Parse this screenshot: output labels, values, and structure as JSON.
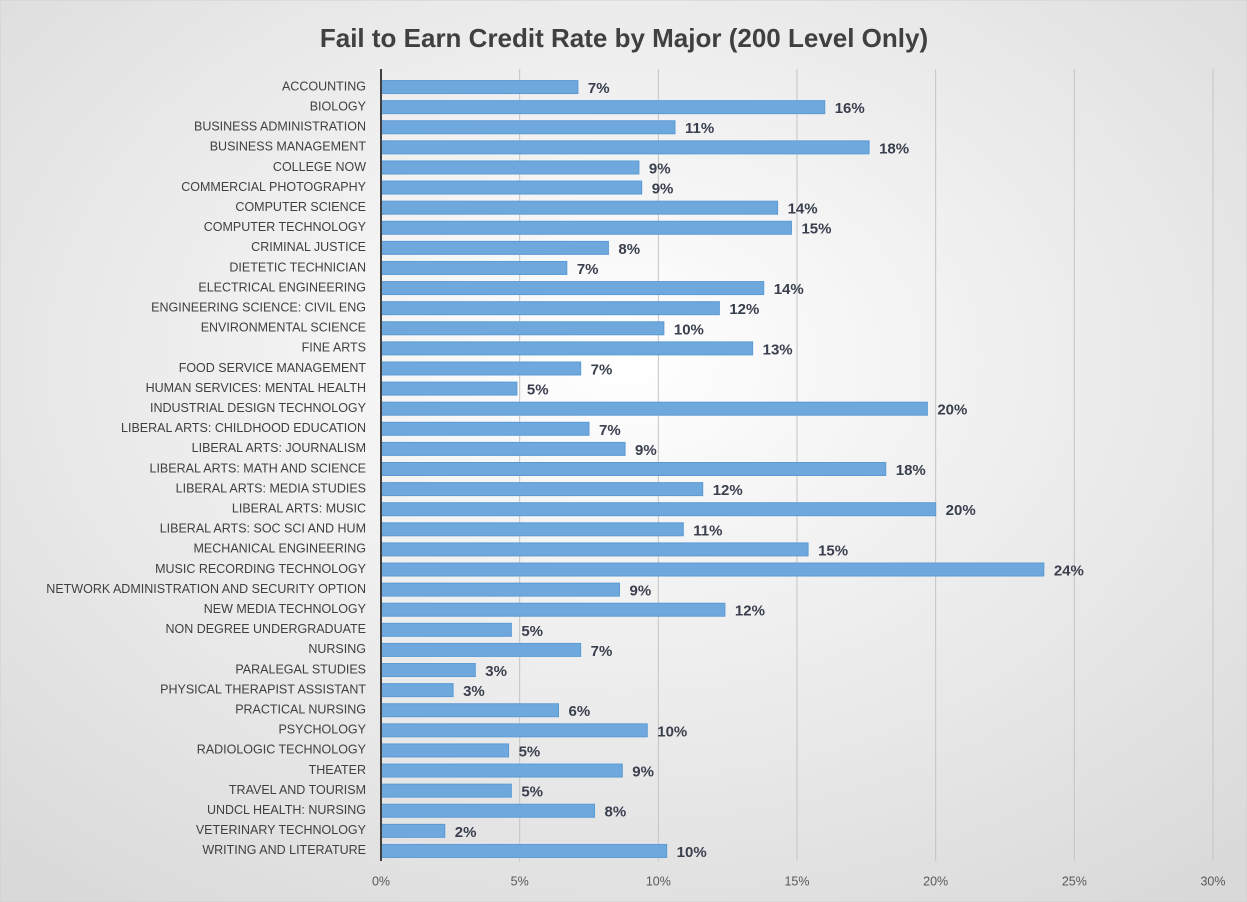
{
  "chart_data": {
    "type": "barh",
    "title": "Fail to Earn Credit Rate by Major (200 Level Only)",
    "categories": [
      "ACCOUNTING",
      "BIOLOGY",
      "BUSINESS ADMINISTRATION",
      "BUSINESS MANAGEMENT",
      "COLLEGE NOW",
      "COMMERCIAL PHOTOGRAPHY",
      "COMPUTER SCIENCE",
      "COMPUTER TECHNOLOGY",
      "CRIMINAL JUSTICE",
      "DIETETIC TECHNICIAN",
      "ELECTRICAL ENGINEERING",
      "ENGINEERING SCIENCE: CIVIL ENG",
      "ENVIRONMENTAL SCIENCE",
      "FINE ARTS",
      "FOOD SERVICE MANAGEMENT",
      "HUMAN SERVICES: MENTAL HEALTH",
      "INDUSTRIAL DESIGN TECHNOLOGY",
      "LIBERAL ARTS: CHILDHOOD EDUCATION",
      "LIBERAL ARTS: JOURNALISM",
      "LIBERAL ARTS: MATH AND SCIENCE",
      "LIBERAL ARTS: MEDIA STUDIES",
      "LIBERAL ARTS: MUSIC",
      "LIBERAL ARTS: SOC SCI AND HUM",
      "MECHANICAL ENGINEERING",
      "MUSIC RECORDING TECHNOLOGY",
      "NETWORK ADMINISTRATION AND SECURITY OPTION",
      "NEW MEDIA TECHNOLOGY",
      "NON DEGREE UNDERGRADUATE",
      "NURSING",
      "PARALEGAL STUDIES",
      "PHYSICAL THERAPIST ASSISTANT",
      "PRACTICAL NURSING",
      "PSYCHOLOGY",
      "RADIOLOGIC TECHNOLOGY",
      "THEATER",
      "TRAVEL AND TOURISM",
      "UNDCL HEALTH: NURSING",
      "VETERINARY TECHNOLOGY",
      "WRITING AND LITERATURE"
    ],
    "values": [
      7.1,
      16.0,
      10.6,
      17.6,
      9.3,
      9.4,
      14.3,
      14.8,
      8.2,
      6.7,
      13.8,
      12.2,
      10.2,
      13.4,
      7.2,
      4.9,
      19.7,
      7.5,
      8.8,
      18.2,
      11.6,
      20.0,
      10.9,
      15.4,
      23.9,
      8.6,
      12.4,
      4.7,
      7.2,
      3.4,
      2.6,
      6.4,
      9.6,
      4.6,
      8.7,
      4.7,
      7.7,
      2.3,
      10.3
    ],
    "value_labels": [
      "7%",
      "16%",
      "11%",
      "18%",
      "9%",
      "9%",
      "14%",
      "15%",
      "8%",
      "7%",
      "14%",
      "12%",
      "10%",
      "13%",
      "7%",
      "5%",
      "20%",
      "7%",
      "9%",
      "18%",
      "12%",
      "20%",
      "11%",
      "15%",
      "24%",
      "9%",
      "12%",
      "5%",
      "7%",
      "3%",
      "3%",
      "6%",
      "10%",
      "5%",
      "9%",
      "5%",
      "8%",
      "2%",
      "10%"
    ],
    "color": "#6fa8dc",
    "xlim": [
      0,
      30
    ],
    "xticks": [
      {
        "value": 0,
        "label": "0%"
      },
      {
        "value": 5,
        "label": "5%"
      },
      {
        "value": 10,
        "label": "10%"
      },
      {
        "value": 15,
        "label": "15%"
      },
      {
        "value": 20,
        "label": "20%"
      },
      {
        "value": 25,
        "label": "25%"
      },
      {
        "value": 30,
        "label": "30%"
      }
    ],
    "grid": true
  }
}
